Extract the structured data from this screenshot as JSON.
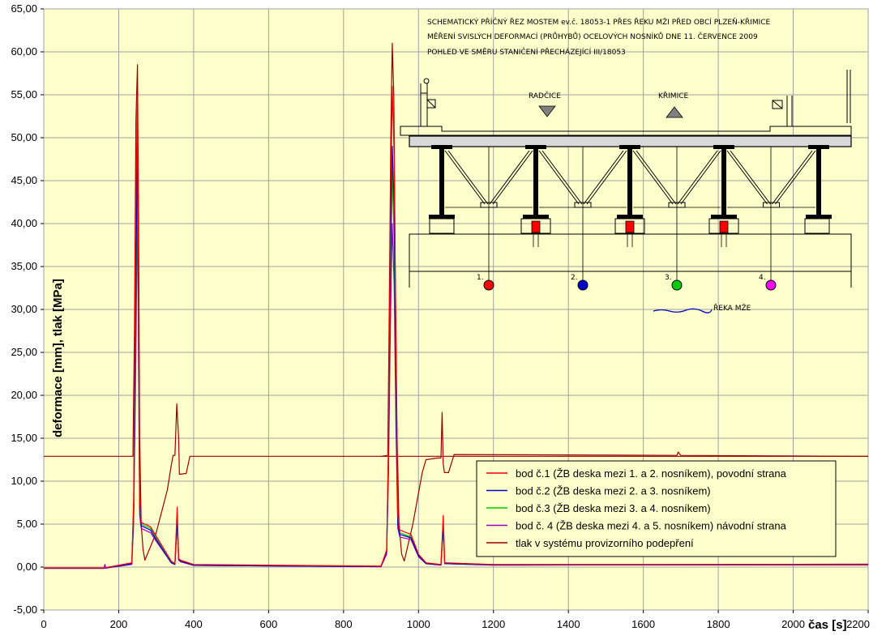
{
  "chart_data": {
    "type": "line",
    "xlabel": "čas [s]",
    "ylabel": "deformace [mm], tlak [MPa]",
    "xlim": [
      0,
      2200
    ],
    "ylim": [
      -5,
      65
    ],
    "x_ticks": [
      "0",
      "200",
      "400",
      "600",
      "800",
      "1000",
      "1200",
      "1400",
      "1600",
      "1800",
      "2000",
      "2200"
    ],
    "y_ticks": [
      "-5,00",
      "0,00",
      "5,00",
      "10,00",
      "15,00",
      "20,00",
      "25,00",
      "30,00",
      "35,00",
      "40,00",
      "45,00",
      "50,00",
      "55,00",
      "60,00",
      "65,00"
    ],
    "grid": true,
    "legend_position": "bottom-right",
    "series": [
      {
        "name": "bod č.1 (ŽB deska mezi 1. a 2. nosníkem), povodní strana",
        "color": "#ff0000",
        "points": [
          [
            0,
            -0.1
          ],
          [
            160,
            -0.1
          ],
          [
            235,
            0.5
          ],
          [
            240,
            8
          ],
          [
            245,
            40
          ],
          [
            250,
            55
          ],
          [
            253,
            30
          ],
          [
            256,
            8
          ],
          [
            260,
            5.2
          ],
          [
            285,
            4.7
          ],
          [
            300,
            3.6
          ],
          [
            340,
            0.7
          ],
          [
            350,
            0.4
          ],
          [
            356,
            7
          ],
          [
            360,
            1
          ],
          [
            365,
            0.8
          ],
          [
            400,
            0.3
          ],
          [
            900,
            0.1
          ],
          [
            915,
            2
          ],
          [
            920,
            15
          ],
          [
            925,
            40
          ],
          [
            930,
            56
          ],
          [
            935,
            48
          ],
          [
            940,
            25
          ],
          [
            945,
            6
          ],
          [
            950,
            4.3
          ],
          [
            980,
            3.8
          ],
          [
            1000,
            1.5
          ],
          [
            1020,
            0.5
          ],
          [
            1060,
            0.3
          ],
          [
            1066,
            6
          ],
          [
            1070,
            0.5
          ],
          [
            1200,
            0.3
          ],
          [
            2200,
            0.3
          ]
        ]
      },
      {
        "name": "bod č.2 (ŽB deska mezi 2. a 3. nosníkem)",
        "color": "#0000cc",
        "points": [
          [
            0,
            -0.15
          ],
          [
            160,
            -0.15
          ],
          [
            235,
            0.4
          ],
          [
            240,
            7
          ],
          [
            245,
            30
          ],
          [
            250,
            51
          ],
          [
            253,
            28
          ],
          [
            256,
            7
          ],
          [
            260,
            4.8
          ],
          [
            285,
            4.3
          ],
          [
            300,
            3.2
          ],
          [
            340,
            0.5
          ],
          [
            350,
            0.3
          ],
          [
            356,
            5.8
          ],
          [
            360,
            0.9
          ],
          [
            365,
            0.7
          ],
          [
            400,
            0.2
          ],
          [
            900,
            0.05
          ],
          [
            915,
            1.8
          ],
          [
            920,
            14
          ],
          [
            925,
            35
          ],
          [
            930,
            49
          ],
          [
            935,
            42
          ],
          [
            940,
            20
          ],
          [
            945,
            5
          ],
          [
            950,
            3.8
          ],
          [
            980,
            3.4
          ],
          [
            1000,
            1.3
          ],
          [
            1020,
            0.4
          ],
          [
            1060,
            0.25
          ],
          [
            1066,
            5
          ],
          [
            1070,
            0.4
          ],
          [
            1200,
            0.25
          ],
          [
            2200,
            0.25
          ]
        ]
      },
      {
        "name": "bod č.3 (ŽB deska mezi 3. a 4. nosníkem)",
        "color": "#00cc00",
        "points": [
          [
            0,
            -0.1
          ],
          [
            160,
            -0.1
          ],
          [
            235,
            0.4
          ],
          [
            240,
            6
          ],
          [
            245,
            27
          ],
          [
            250,
            47
          ],
          [
            253,
            25
          ],
          [
            256,
            6.5
          ],
          [
            260,
            5
          ],
          [
            285,
            4.5
          ],
          [
            300,
            3.4
          ],
          [
            340,
            0.6
          ],
          [
            350,
            0.35
          ],
          [
            356,
            6
          ],
          [
            360,
            0.9
          ],
          [
            365,
            0.7
          ],
          [
            400,
            0.25
          ],
          [
            900,
            0.08
          ],
          [
            915,
            1.8
          ],
          [
            920,
            13
          ],
          [
            925,
            33
          ],
          [
            930,
            46
          ],
          [
            935,
            38
          ],
          [
            940,
            19
          ],
          [
            945,
            5
          ],
          [
            950,
            4
          ],
          [
            980,
            3.5
          ],
          [
            1000,
            1.4
          ],
          [
            1020,
            0.45
          ],
          [
            1060,
            0.28
          ],
          [
            1066,
            5.2
          ],
          [
            1070,
            0.45
          ],
          [
            1200,
            0.28
          ],
          [
            2200,
            0.28
          ]
        ]
      },
      {
        "name": "bod č. 4 (ŽB deska mezi 4. a 5. nosníkem) návodní strana",
        "color": "#9900cc",
        "points": [
          [
            0,
            -0.12
          ],
          [
            160,
            -0.12
          ],
          [
            163,
            0.3
          ],
          [
            166,
            -0.12
          ],
          [
            235,
            0.3
          ],
          [
            240,
            5
          ],
          [
            245,
            22
          ],
          [
            250,
            42
          ],
          [
            253,
            22
          ],
          [
            256,
            6
          ],
          [
            260,
            4.5
          ],
          [
            285,
            4
          ],
          [
            300,
            3
          ],
          [
            340,
            0.5
          ],
          [
            350,
            0.3
          ],
          [
            356,
            5
          ],
          [
            360,
            0.8
          ],
          [
            365,
            0.6
          ],
          [
            400,
            0.2
          ],
          [
            900,
            0.05
          ],
          [
            915,
            1.5
          ],
          [
            920,
            11
          ],
          [
            925,
            28
          ],
          [
            930,
            40
          ],
          [
            935,
            33
          ],
          [
            940,
            16
          ],
          [
            945,
            4.5
          ],
          [
            950,
            3.5
          ],
          [
            980,
            3.2
          ],
          [
            1000,
            1.2
          ],
          [
            1020,
            0.4
          ],
          [
            1060,
            0.22
          ],
          [
            1066,
            4.5
          ],
          [
            1070,
            0.4
          ],
          [
            1200,
            0.22
          ],
          [
            2200,
            0.35
          ]
        ]
      },
      {
        "name": "tlak v systému provizorního podepření",
        "color": "#990000",
        "points": [
          [
            0,
            12.9
          ],
          [
            238,
            12.9
          ],
          [
            242,
            28
          ],
          [
            246,
            52
          ],
          [
            250,
            58.5
          ],
          [
            253,
            40
          ],
          [
            256,
            15
          ],
          [
            260,
            5
          ],
          [
            265,
            2
          ],
          [
            270,
            0.8
          ],
          [
            300,
            4
          ],
          [
            330,
            9
          ],
          [
            340,
            11.8
          ],
          [
            345,
            13
          ],
          [
            350,
            13
          ],
          [
            355,
            19
          ],
          [
            360,
            15
          ],
          [
            362,
            10.8
          ],
          [
            380,
            10.9
          ],
          [
            390,
            12.9
          ],
          [
            2200,
            12.9
          ]
        ]
      },
      {
        "name": "tlak v systému provizorního podepření (2)",
        "color": "#990000",
        "points": [
          [
            900,
            12.9
          ],
          [
            918,
            13
          ],
          [
            922,
            30
          ],
          [
            926,
            50
          ],
          [
            930,
            61
          ],
          [
            934,
            55
          ],
          [
            938,
            35
          ],
          [
            943,
            15
          ],
          [
            948,
            5
          ],
          [
            955,
            1.5
          ],
          [
            962,
            0.7
          ],
          [
            985,
            5
          ],
          [
            1010,
            11
          ],
          [
            1020,
            12.5
          ],
          [
            1050,
            12.7
          ],
          [
            1060,
            12.7
          ],
          [
            1063,
            18
          ],
          [
            1066,
            12
          ],
          [
            1069,
            11
          ],
          [
            1080,
            11
          ],
          [
            1095,
            13.1
          ],
          [
            1690,
            13
          ],
          [
            1693,
            13.4
          ],
          [
            1700,
            13
          ],
          [
            2200,
            12.9
          ]
        ]
      }
    ]
  },
  "schema": {
    "title_line1": "SCHEMATICKÝ PŘÍČNÝ ŘEZ MOSTEM ev.č. 18053-1 PŘES ŘEKU MŽI PŘED OBCÍ PLZEŇ-KŘIMICE",
    "title_line2": "MĚŘENÍ SVISLÝCH DEFORMACÍ (PRŮHYBŮ) OCELOVÝCH NOSNÍKŮ DNE 11. ČERVENCE 2009",
    "title_line3": "POHLED VE SMĚRU STANIČENÍ PŘECHÁZEJÍCÍ III/18053",
    "label_left": "RADČICE",
    "label_right": "KŘIMICE",
    "river_label": "ŘEKA MŽE",
    "points": [
      {
        "label": "1.",
        "color": "#ff0000"
      },
      {
        "label": "2.",
        "color": "#0000cc"
      },
      {
        "label": "3.",
        "color": "#00cc00"
      },
      {
        "label": "4.",
        "color": "#ff00ff"
      }
    ]
  },
  "legend": {
    "items": [
      {
        "label": "bod č.1 (ŽB deska mezi 1. a 2. nosníkem), povodní strana",
        "color": "#ff0000"
      },
      {
        "label": "bod č.2 (ŽB deska mezi 2. a 3. nosníkem)",
        "color": "#0000cc"
      },
      {
        "label": "bod č.3 (ŽB deska mezi 3. a 4. nosníkem)",
        "color": "#00cc00"
      },
      {
        "label": "bod č. 4 (ŽB deska mezi 4. a 5. nosníkem) návodní strana",
        "color": "#9900cc"
      },
      {
        "label": "tlak v systému provizorního podepření",
        "color": "#990000"
      }
    ]
  },
  "colors": {
    "plot_background": "#ffffcc",
    "grid": "#a0a0a0"
  }
}
